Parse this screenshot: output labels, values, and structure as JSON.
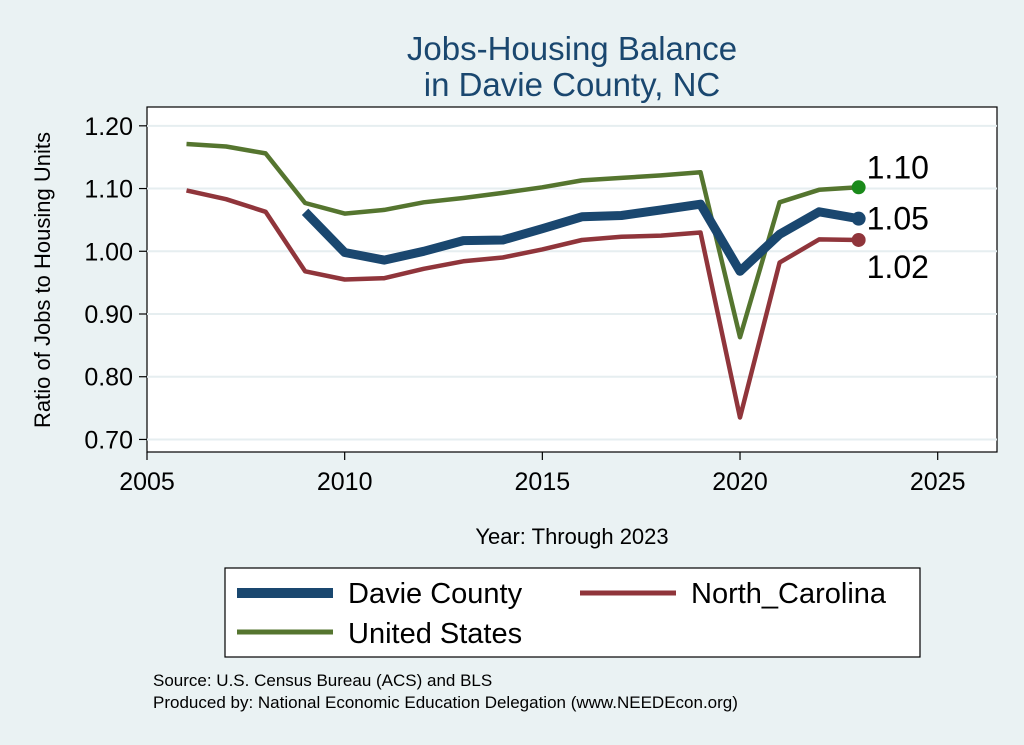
{
  "chart_data": {
    "type": "line",
    "title_lines": [
      "Jobs-Housing Balance",
      "in Davie County, NC"
    ],
    "xlabel": "Year: Through 2023",
    "ylabel": "Ratio of Jobs to Housing Units",
    "xlim": [
      2005,
      2026.5
    ],
    "ylim": [
      0.68,
      1.23
    ],
    "x_ticks": [
      2005,
      2010,
      2015,
      2020,
      2025
    ],
    "y_ticks": [
      0.7,
      0.8,
      0.9,
      1.0,
      1.1,
      1.2
    ],
    "y_tick_labels": [
      "0.70",
      "0.80",
      "0.90",
      "1.00",
      "1.10",
      "1.20"
    ],
    "grid": true,
    "series": [
      {
        "name": "Davie County",
        "color": "#1a476f",
        "line_weight": "thick",
        "x": [
          2009,
          2010,
          2011,
          2012,
          2013,
          2014,
          2015,
          2016,
          2017,
          2018,
          2019,
          2020,
          2021,
          2022,
          2023
        ],
        "values": [
          1.063,
          0.998,
          0.986,
          1.0,
          1.017,
          1.018,
          1.036,
          1.055,
          1.057,
          1.066,
          1.075,
          0.968,
          1.027,
          1.063,
          1.052
        ],
        "end_label": "1.05"
      },
      {
        "name": "North_Carolina",
        "color": "#90353b",
        "line_weight": "medium",
        "x": [
          2006,
          2007,
          2008,
          2009,
          2010,
          2011,
          2012,
          2013,
          2014,
          2015,
          2016,
          2017,
          2018,
          2019,
          2020,
          2021,
          2022,
          2023
        ],
        "values": [
          1.097,
          1.083,
          1.063,
          0.968,
          0.955,
          0.957,
          0.972,
          0.984,
          0.99,
          1.003,
          1.018,
          1.023,
          1.025,
          1.03,
          0.735,
          0.982,
          1.019,
          1.018
        ],
        "end_label": "1.02"
      },
      {
        "name": "United States",
        "color": "#55752f",
        "line_weight": "medium",
        "x": [
          2006,
          2007,
          2008,
          2009,
          2010,
          2011,
          2012,
          2013,
          2014,
          2015,
          2016,
          2017,
          2018,
          2019,
          2020,
          2021,
          2022,
          2023
        ],
        "values": [
          1.171,
          1.167,
          1.156,
          1.077,
          1.06,
          1.066,
          1.078,
          1.085,
          1.093,
          1.102,
          1.113,
          1.117,
          1.121,
          1.126,
          0.863,
          1.078,
          1.098,
          1.102
        ],
        "end_label": "1.10",
        "end_marker_color": "#1a8a1a"
      }
    ],
    "legend": {
      "position": "bottom",
      "entries": [
        "Davie County",
        "North_Carolina",
        "United States"
      ]
    },
    "notes": [
      "Source: U.S. Census Bureau (ACS) and BLS",
      "Produced by: National Economic Education Delegation (www.NEEDEcon.org)"
    ]
  }
}
